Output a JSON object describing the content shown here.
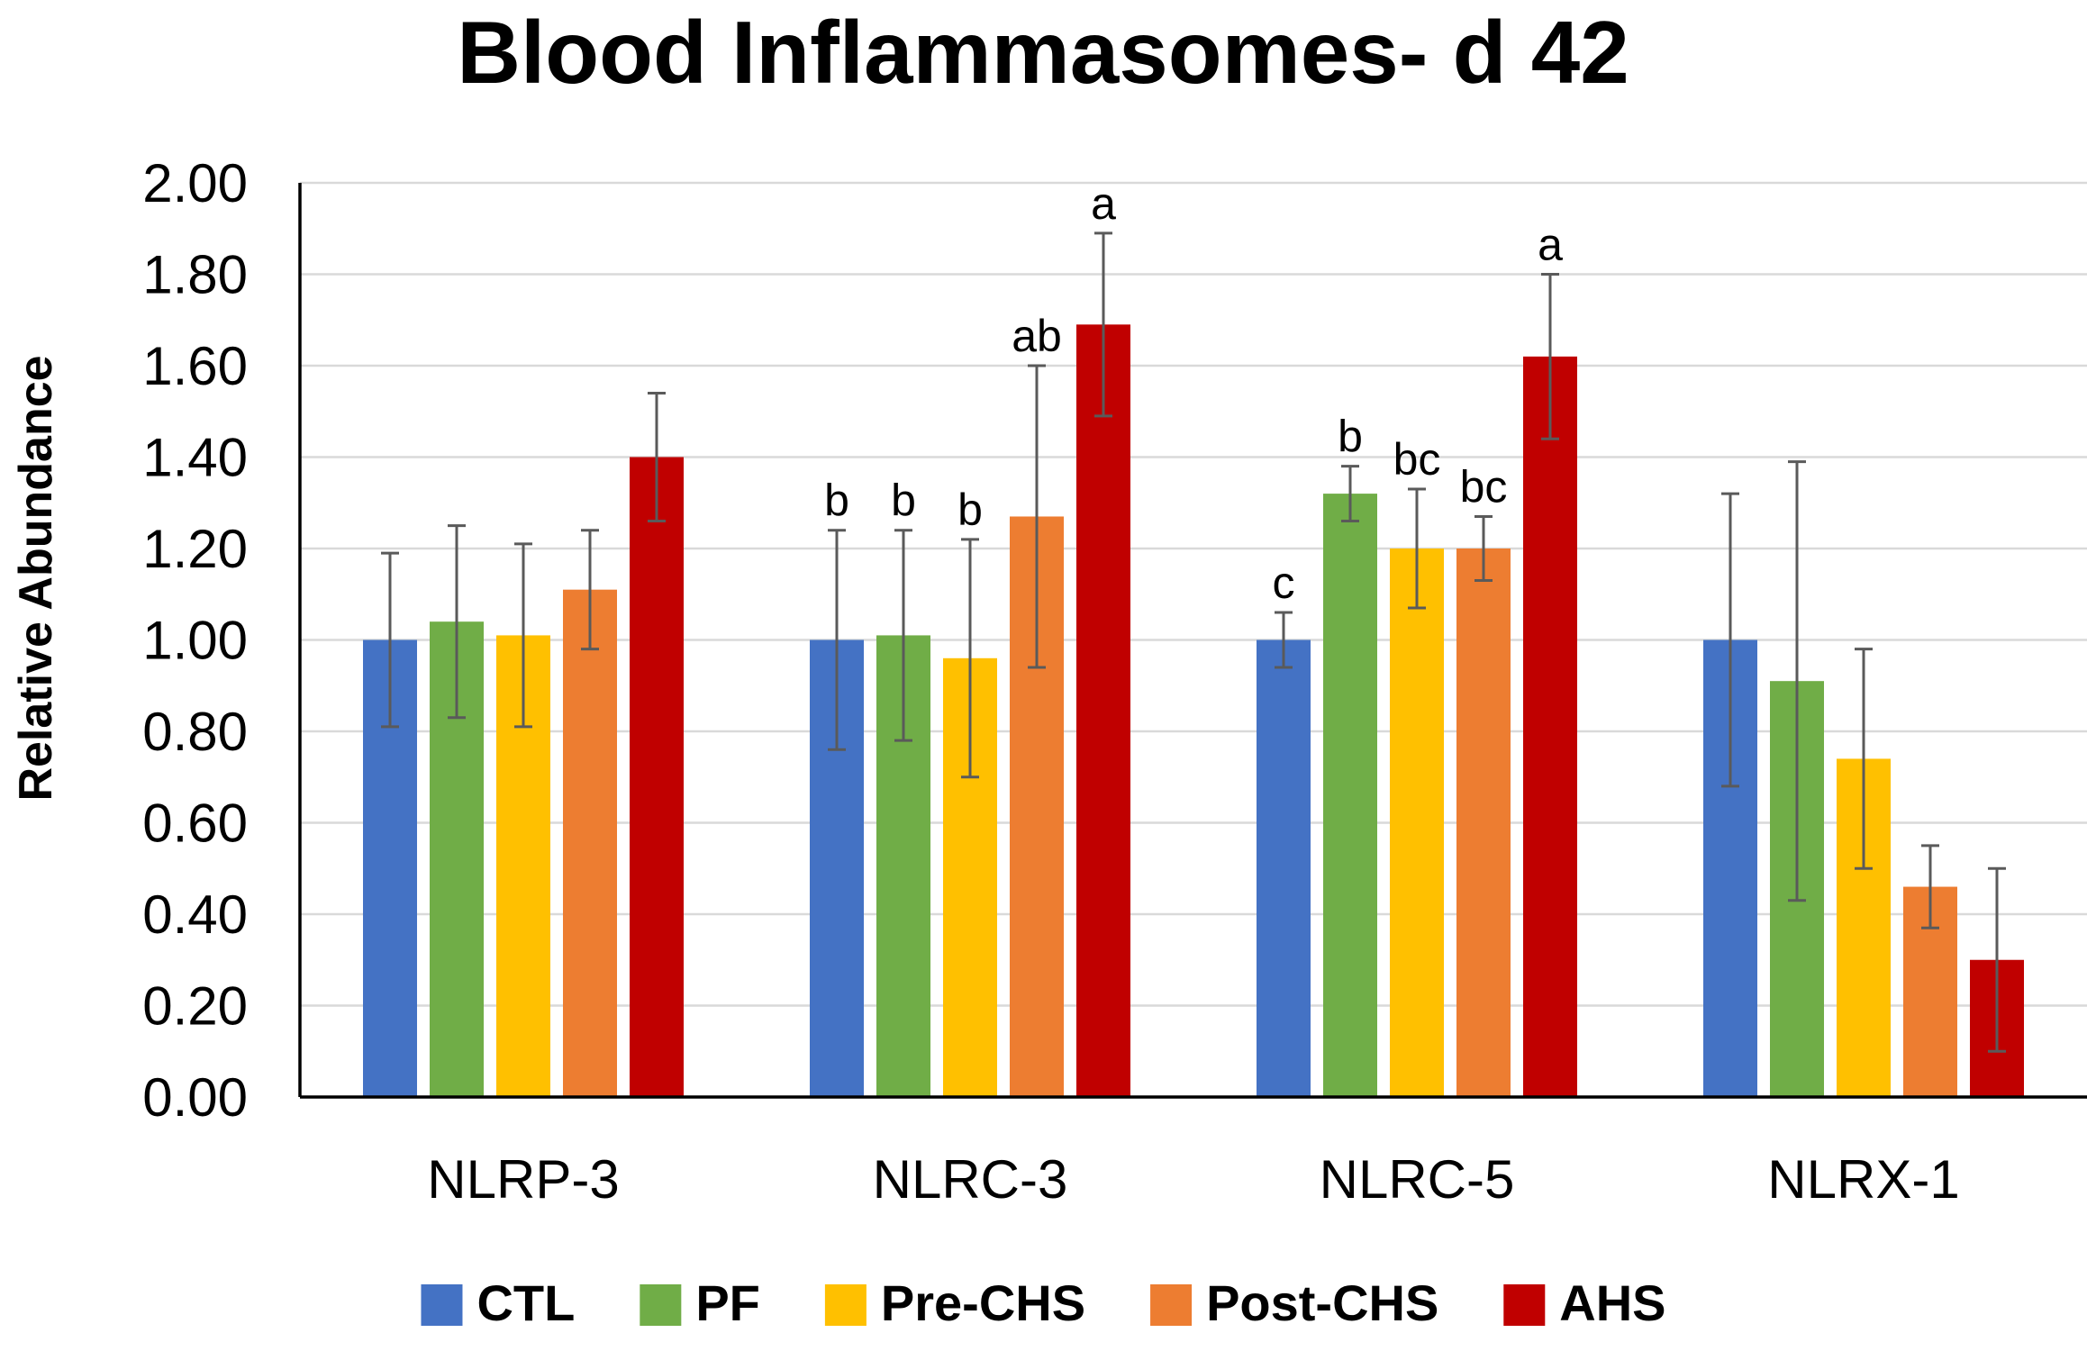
{
  "chart_data": {
    "type": "bar",
    "title": "Blood Inflammasomes- d 42",
    "xlabel": "",
    "ylabel": "Relative Abundance",
    "ylim": [
      0,
      2
    ],
    "ytick_step": 0.2,
    "ytick_labels": [
      "0.00",
      "0.20",
      "0.40",
      "0.60",
      "0.80",
      "1.00",
      "1.20",
      "1.40",
      "1.60",
      "1.80",
      "2.00"
    ],
    "grid": true,
    "legend_position": "bottom",
    "categories": [
      "NLRP-3",
      "NLRC-3",
      "NLRC-5",
      "NLRX-1"
    ],
    "series": [
      {
        "name": "CTL",
        "color": "#4472c4",
        "values": [
          1.0,
          1.0,
          1.0,
          1.0
        ],
        "error": [
          0.19,
          0.24,
          0.06,
          0.32
        ],
        "labels": [
          "",
          "b",
          "c",
          ""
        ]
      },
      {
        "name": "PF",
        "color": "#70ad47",
        "values": [
          1.04,
          1.01,
          1.32,
          0.91
        ],
        "error": [
          0.21,
          0.23,
          0.06,
          0.48
        ],
        "labels": [
          "",
          "b",
          "b",
          ""
        ]
      },
      {
        "name": "Pre-CHS",
        "color": "#ffc000",
        "values": [
          1.01,
          0.96,
          1.2,
          0.74
        ],
        "error": [
          0.2,
          0.26,
          0.13,
          0.24
        ],
        "labels": [
          "",
          "b",
          "bc",
          ""
        ]
      },
      {
        "name": "Post-CHS",
        "color": "#ed7d31",
        "values": [
          1.11,
          1.27,
          1.2,
          0.46
        ],
        "error": [
          0.13,
          0.33,
          0.07,
          0.09
        ],
        "labels": [
          "",
          "ab",
          "bc",
          ""
        ]
      },
      {
        "name": "AHS",
        "color": "#c00000",
        "values": [
          1.4,
          1.69,
          1.62,
          0.3
        ],
        "error": [
          0.14,
          0.2,
          0.18,
          0.2
        ],
        "labels": [
          "",
          "a",
          "a",
          ""
        ]
      }
    ]
  }
}
